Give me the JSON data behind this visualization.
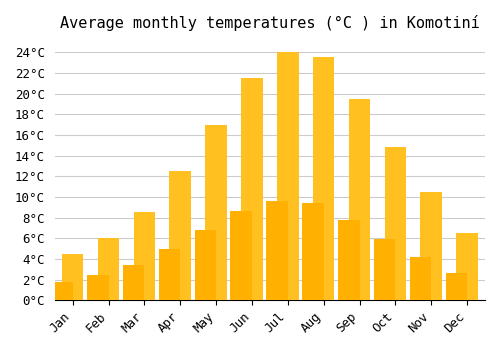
{
  "title": "Average monthly temperatures (°C ) in Komotiní",
  "months": [
    "Jan",
    "Feb",
    "Mar",
    "Apr",
    "May",
    "Jun",
    "Jul",
    "Aug",
    "Sep",
    "Oct",
    "Nov",
    "Dec"
  ],
  "values": [
    4.5,
    6.0,
    8.5,
    12.5,
    17.0,
    21.5,
    24.0,
    23.5,
    19.5,
    14.8,
    10.5,
    6.5
  ],
  "bar_color_top": "#FFC020",
  "bar_color_bottom": "#FFB000",
  "ylim": [
    0,
    25
  ],
  "yticks": [
    0,
    2,
    4,
    6,
    8,
    10,
    12,
    14,
    16,
    18,
    20,
    22,
    24
  ],
  "background_color": "#FFFFFF",
  "grid_color": "#CCCCCC",
  "title_fontsize": 11,
  "tick_fontsize": 9,
  "font_family": "monospace"
}
